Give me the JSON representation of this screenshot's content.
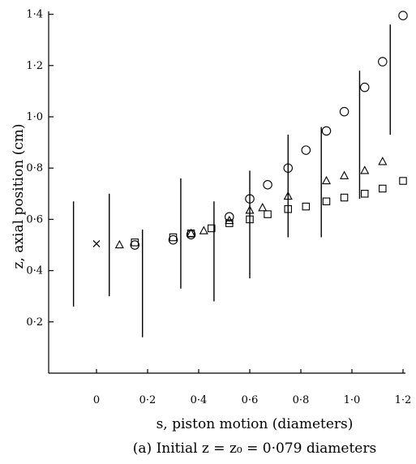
{
  "chart_data": {
    "type": "scatter",
    "xlabel": "s, piston motion (diameters)",
    "ylabel": "z, axial position (cm)",
    "caption": "(a) Initial z = z₀ = 0·079 diameters",
    "xlim": [
      -0.1,
      1.22
    ],
    "ylim": [
      0.0,
      1.42
    ],
    "x_ticks": [
      "0",
      "0·2",
      "0·4",
      "0·6",
      "0·8",
      "1·0",
      "1·2"
    ],
    "x_tick_values": [
      0,
      0.2,
      0.4,
      0.6,
      0.8,
      1.0,
      1.2
    ],
    "y_ticks": [
      "0·2",
      "0·4",
      "0·6",
      "0·8",
      "1·0",
      "1·2",
      "1·4"
    ],
    "y_tick_values": [
      0.2,
      0.4,
      0.6,
      0.8,
      1.0,
      1.2,
      1.4
    ],
    "grid": false,
    "series": [
      {
        "marker": "cross",
        "points": [
          [
            0.0,
            0.505
          ]
        ]
      },
      {
        "marker": "circle",
        "points": [
          [
            0.15,
            0.5
          ],
          [
            0.3,
            0.52
          ],
          [
            0.37,
            0.54
          ],
          [
            0.52,
            0.61
          ],
          [
            0.6,
            0.68
          ],
          [
            0.67,
            0.735
          ],
          [
            0.75,
            0.8
          ],
          [
            0.82,
            0.87
          ],
          [
            0.9,
            0.945
          ],
          [
            0.97,
            1.02
          ],
          [
            1.05,
            1.115
          ],
          [
            1.12,
            1.215
          ],
          [
            1.2,
            1.395
          ]
        ]
      },
      {
        "marker": "triangle",
        "points": [
          [
            0.09,
            0.5
          ],
          [
            0.37,
            0.545
          ],
          [
            0.42,
            0.555
          ],
          [
            0.52,
            0.595
          ],
          [
            0.6,
            0.635
          ],
          [
            0.65,
            0.645
          ],
          [
            0.75,
            0.69
          ],
          [
            0.9,
            0.75
          ],
          [
            0.97,
            0.77
          ],
          [
            1.05,
            0.79
          ],
          [
            1.12,
            0.825
          ]
        ]
      },
      {
        "marker": "square",
        "points": [
          [
            0.15,
            0.51
          ],
          [
            0.3,
            0.53
          ],
          [
            0.37,
            0.545
          ],
          [
            0.45,
            0.565
          ],
          [
            0.52,
            0.585
          ],
          [
            0.6,
            0.6
          ],
          [
            0.67,
            0.62
          ],
          [
            0.75,
            0.64
          ],
          [
            0.82,
            0.65
          ],
          [
            0.9,
            0.67
          ],
          [
            0.97,
            0.685
          ],
          [
            1.05,
            0.7
          ],
          [
            1.12,
            0.72
          ],
          [
            1.2,
            0.75
          ]
        ]
      }
    ],
    "range_bars": [
      [
        -0.09,
        0.26,
        0.67
      ],
      [
        0.05,
        0.3,
        0.7
      ],
      [
        0.18,
        0.14,
        0.56
      ],
      [
        0.33,
        0.33,
        0.76
      ],
      [
        0.46,
        0.28,
        0.67
      ],
      [
        0.6,
        0.37,
        0.79
      ],
      [
        0.75,
        0.53,
        0.93
      ],
      [
        0.88,
        0.53,
        0.96
      ],
      [
        1.03,
        0.68,
        1.18
      ],
      [
        1.15,
        0.93,
        1.36
      ]
    ]
  }
}
